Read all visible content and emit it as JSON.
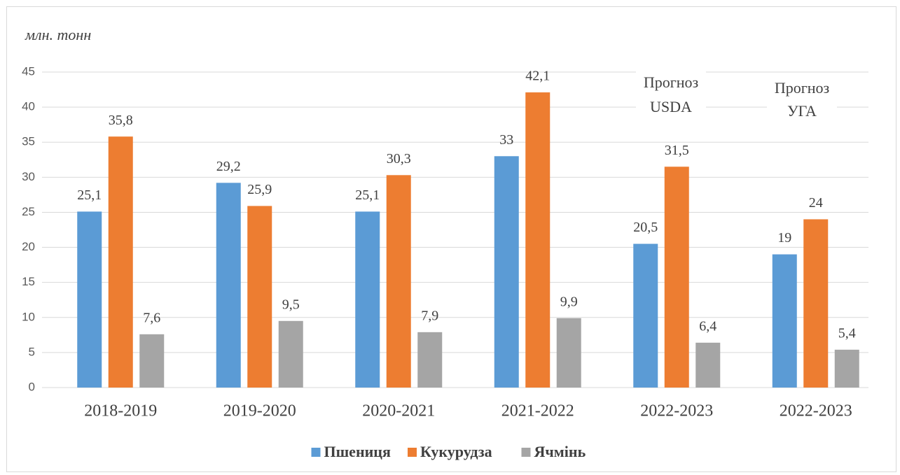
{
  "chart_data": {
    "type": "bar",
    "y_axis_label": "млн. тонн",
    "categories": [
      "2018-2019",
      "2019-2020",
      "2020-2021",
      "2021-2022",
      "2022-2023",
      "2022-2023"
    ],
    "series": [
      {
        "name": "Пшениця",
        "color": "#5b9bd5",
        "values": [
          25.1,
          29.2,
          25.1,
          33,
          20.5,
          19
        ],
        "value_labels": [
          "25,1",
          "29,2",
          "25,1",
          "33",
          "20,5",
          "19"
        ]
      },
      {
        "name": "Кукурудза",
        "color": "#ed7d31",
        "values": [
          35.8,
          25.9,
          30.3,
          42.1,
          31.5,
          24
        ],
        "value_labels": [
          "35,8",
          "25,9",
          "30,3",
          "42,1",
          "31,5",
          "24"
        ]
      },
      {
        "name": "Ячмінь",
        "color": "#a5a5a5",
        "values": [
          7.6,
          9.5,
          7.9,
          9.9,
          6.4,
          5.4
        ],
        "value_labels": [
          "7,6",
          "9,5",
          "7,9",
          "9,9",
          "6,4",
          "5,4"
        ]
      }
    ],
    "annotations": [
      [
        "Прогноз",
        "USDA"
      ],
      [
        "Прогноз",
        "УГА"
      ]
    ],
    "ylim": [
      0,
      45
    ],
    "yticks": [
      0,
      5,
      10,
      15,
      20,
      25,
      30,
      35,
      40,
      45
    ],
    "grid": true,
    "legend": "bottom"
  }
}
